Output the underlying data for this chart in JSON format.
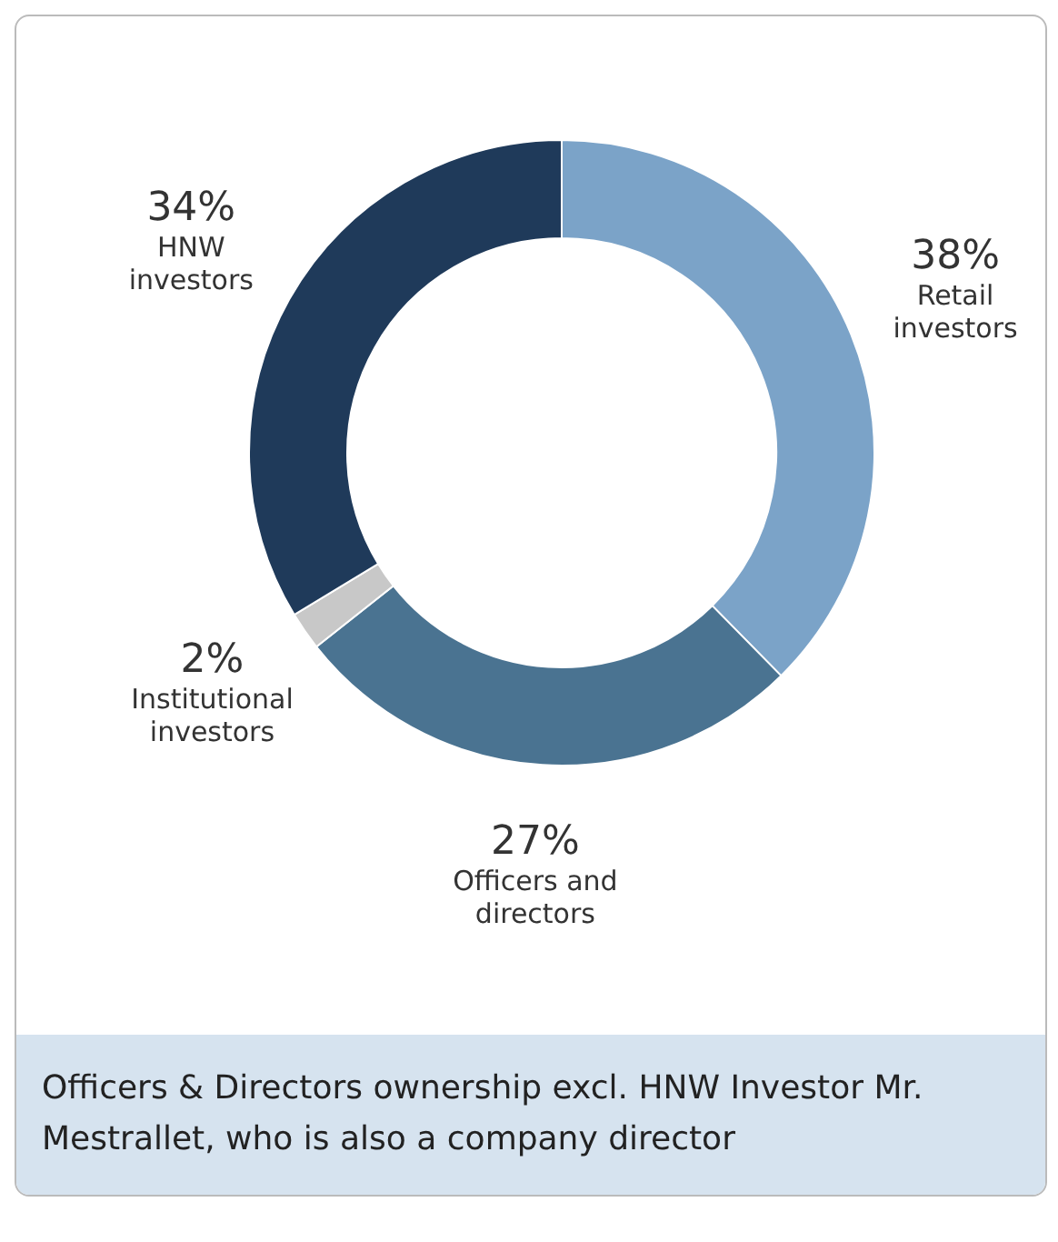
{
  "chart_data": {
    "type": "donut",
    "categories": [
      "Retail investors",
      "Officers and directors",
      "Institutional investors",
      "HNW investors"
    ],
    "values": [
      38,
      27,
      2,
      34
    ],
    "colors": [
      "#7ba3c8",
      "#4a7391",
      "#c8c8c8",
      "#1f3a5a"
    ],
    "value_labels": [
      "38%",
      "27%",
      "2%",
      "34%"
    ],
    "annotations": [
      "Officers & Directors ownership excl. HNW Investor Mr. Mestrallet, who is also a company director"
    ]
  }
}
